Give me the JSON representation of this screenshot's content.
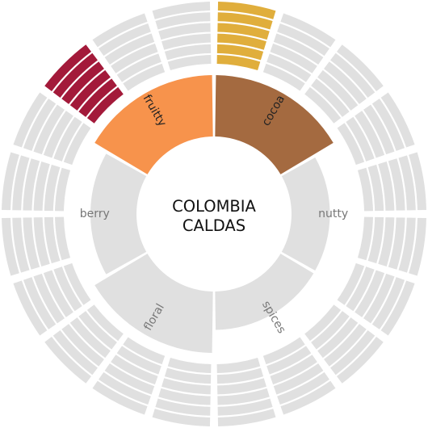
{
  "center": {
    "line1": "COLOMBIA",
    "line2": "CALDAS"
  },
  "colors": {
    "inactive": "#e0e0e0",
    "text_active": "#222222",
    "text_inactive": "#777777",
    "highlight_cocoa_outer": "#e0ae3c",
    "highlight_fruity_outer": "#a31a3a"
  },
  "inner_ring": {
    "segments": [
      {
        "id": "cocoa",
        "label": "cocoa",
        "value": 1,
        "color": "#a46a40",
        "active": true
      },
      {
        "id": "nutty",
        "label": "nutty",
        "value": 0.625,
        "color": "#e0e0e0",
        "active": false
      },
      {
        "id": "spices",
        "label": "spices",
        "value": 0.625,
        "color": "#e0e0e0",
        "active": false
      },
      {
        "id": "floral",
        "label": "floral",
        "value": 1,
        "color": "#e0e0e0",
        "active": false
      },
      {
        "id": "berry",
        "label": "berry",
        "value": 0.75,
        "color": "#e0e0e0",
        "active": false
      },
      {
        "id": "fruitty",
        "label": "fruitty",
        "value": 1,
        "color": "#f7934c",
        "active": true
      }
    ]
  },
  "outer_ring": {
    "sector_count": 20,
    "bands_per_sector": 6,
    "highlighted_sectors": [
      {
        "index": 0,
        "color": "#e0ae3c"
      },
      {
        "index": 17,
        "color": "#a31a3a"
      }
    ]
  }
}
